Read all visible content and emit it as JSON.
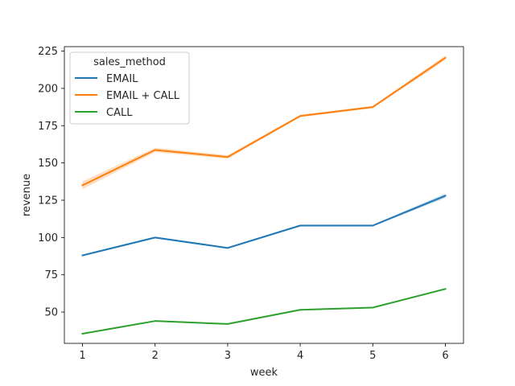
{
  "chart_data": {
    "type": "line",
    "x": [
      1,
      2,
      3,
      4,
      5,
      6
    ],
    "xlabel": "week",
    "ylabel": "revenue",
    "xlim": [
      0.75,
      6.25
    ],
    "ylim": [
      29,
      228
    ],
    "xticks": [
      "1",
      "2",
      "3",
      "4",
      "5",
      "6"
    ],
    "yticks": [
      "50",
      "75",
      "100",
      "125",
      "150",
      "175",
      "200",
      "225"
    ],
    "legend_title": "sales_method",
    "legend_position": "top-left",
    "grid": false,
    "series": [
      {
        "name": "EMAIL",
        "color": "#1f77b4",
        "values": [
          88.0,
          100.0,
          93.0,
          108.0,
          108.0,
          128.0
        ],
        "ci": [
          0.6,
          0.6,
          0.6,
          0.6,
          0.6,
          1.5
        ]
      },
      {
        "name": "EMAIL + CALL",
        "color": "#ff7f0e",
        "values": [
          135.0,
          158.7,
          154.0,
          181.5,
          187.5,
          220.5
        ],
        "ci": [
          2.6,
          1.5,
          1.2,
          0.8,
          0.8,
          1.6
        ]
      },
      {
        "name": "CALL",
        "color": "#2ca02c",
        "values": [
          35.5,
          44.0,
          42.0,
          51.5,
          53.0,
          65.5
        ],
        "ci": [
          0.4,
          0.4,
          0.4,
          0.4,
          0.4,
          0.5
        ]
      }
    ]
  }
}
